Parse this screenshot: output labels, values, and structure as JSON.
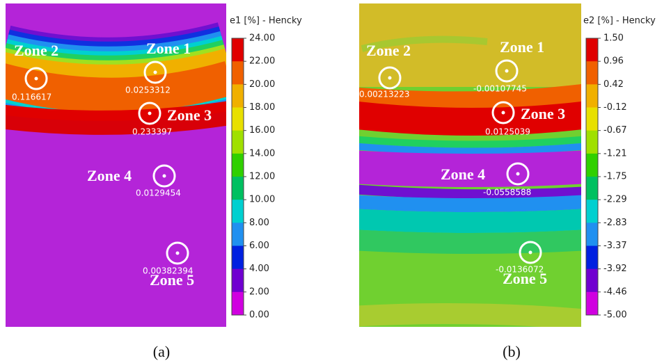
{
  "panels": [
    {
      "caption": "(a)",
      "colorbar_title": "e1 [%] - Hencky",
      "colorbar_labels": [
        "24.00",
        "22.00",
        "20.00",
        "18.00",
        "16.00",
        "14.00",
        "12.00",
        "10.00",
        "8.00",
        "6.00",
        "4.00",
        "2.00",
        "0.00"
      ],
      "zones": [
        {
          "label": "Zone 1",
          "value": "0.0253312"
        },
        {
          "label": "Zone 2",
          "value": "0.116617"
        },
        {
          "label": "Zone 3",
          "value": "0.233397"
        },
        {
          "label": "Zone 4",
          "value": "0.0129454"
        },
        {
          "label": "Zone 5",
          "value": "0.00382394"
        }
      ]
    },
    {
      "caption": "(b)",
      "colorbar_title": "e2 [%] - Hencky",
      "colorbar_labels": [
        "1.50",
        "0.96",
        "0.42",
        "-0.12",
        "-0.67",
        "-1.21",
        "-1.75",
        "-2.29",
        "-2.83",
        "-3.37",
        "-3.92",
        "-4.46",
        "-5.00"
      ],
      "zones": [
        {
          "label": "Zone 1",
          "value": "-0.00107745"
        },
        {
          "label": "Zone 2",
          "value": "0.00213223"
        },
        {
          "label": "Zone 3",
          "value": "0.0125039"
        },
        {
          "label": "Zone 4",
          "value": "-0.0558588"
        },
        {
          "label": "Zone 5",
          "value": "-0.0136072"
        }
      ]
    }
  ]
}
